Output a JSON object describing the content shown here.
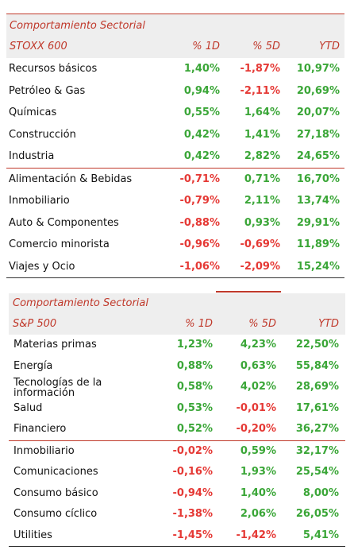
{
  "stoxx": {
    "title": "Comportamiento Sectorial",
    "index": "STOXX 600",
    "col_1d": "% 1D",
    "col_5d": "% 5D",
    "col_ytd": "YTD",
    "rows": [
      {
        "sector": "Recursos básicos",
        "d1": "1,40%",
        "d5": "-1,87%",
        "ytd": "10,97%",
        "d1_sign": "pos",
        "d5_sign": "neg",
        "ytd_sign": "pos"
      },
      {
        "sector": "Petróleo & Gas",
        "d1": "0,94%",
        "d5": "-2,11%",
        "ytd": "20,69%",
        "d1_sign": "pos",
        "d5_sign": "neg",
        "ytd_sign": "pos"
      },
      {
        "sector": "Químicas",
        "d1": "0,55%",
        "d5": "1,64%",
        "ytd": "20,07%",
        "d1_sign": "pos",
        "d5_sign": "pos",
        "ytd_sign": "pos"
      },
      {
        "sector": "Construcción",
        "d1": "0,42%",
        "d5": "1,41%",
        "ytd": "27,18%",
        "d1_sign": "pos",
        "d5_sign": "pos",
        "ytd_sign": "pos"
      },
      {
        "sector": "Industria",
        "d1": "0,42%",
        "d5": "2,82%",
        "ytd": "24,65%",
        "d1_sign": "pos",
        "d5_sign": "pos",
        "ytd_sign": "pos"
      },
      {
        "sector": "Alimentación & Bebidas",
        "d1": "-0,71%",
        "d5": "0,71%",
        "ytd": "16,70%",
        "d1_sign": "neg",
        "d5_sign": "pos",
        "ytd_sign": "pos"
      },
      {
        "sector": "Inmobiliario",
        "d1": "-0,79%",
        "d5": "2,11%",
        "ytd": "13,74%",
        "d1_sign": "neg",
        "d5_sign": "pos",
        "ytd_sign": "pos"
      },
      {
        "sector": "Auto & Componentes",
        "d1": "-0,88%",
        "d5": "0,93%",
        "ytd": "29,91%",
        "d1_sign": "neg",
        "d5_sign": "pos",
        "ytd_sign": "pos"
      },
      {
        "sector": "Comercio minorista",
        "d1": "-0,96%",
        "d5": "-0,69%",
        "ytd": "11,89%",
        "d1_sign": "neg",
        "d5_sign": "neg",
        "ytd_sign": "pos"
      },
      {
        "sector": "Viajes y Ocio",
        "d1": "-1,06%",
        "d5": "-2,09%",
        "ytd": "15,24%",
        "d1_sign": "neg",
        "d5_sign": "neg",
        "ytd_sign": "pos"
      }
    ]
  },
  "sp500": {
    "title": "Comportamiento Sectorial",
    "index": "S&P 500",
    "col_1d": "% 1D",
    "col_5d": "% 5D",
    "col_ytd": "YTD",
    "rows": [
      {
        "sector": "Materias primas",
        "d1": "1,23%",
        "d5": "4,23%",
        "ytd": "22,50%",
        "d1_sign": "pos",
        "d5_sign": "pos",
        "ytd_sign": "pos"
      },
      {
        "sector": "Energía",
        "d1": "0,88%",
        "d5": "0,63%",
        "ytd": "55,84%",
        "d1_sign": "pos",
        "d5_sign": "pos",
        "ytd_sign": "pos"
      },
      {
        "sector": "Tecnologías de la información",
        "d1": "0,58%",
        "d5": "4,02%",
        "ytd": "28,69%",
        "d1_sign": "pos",
        "d5_sign": "pos",
        "ytd_sign": "pos"
      },
      {
        "sector": "Salud",
        "d1": "0,53%",
        "d5": "-0,01%",
        "ytd": "17,61%",
        "d1_sign": "pos",
        "d5_sign": "neg",
        "ytd_sign": "pos"
      },
      {
        "sector": "Financiero",
        "d1": "0,52%",
        "d5": "-0,20%",
        "ytd": "36,27%",
        "d1_sign": "pos",
        "d5_sign": "neg",
        "ytd_sign": "pos"
      },
      {
        "sector": "Inmobiliario",
        "d1": "-0,02%",
        "d5": "0,59%",
        "ytd": "32,17%",
        "d1_sign": "neg",
        "d5_sign": "pos",
        "ytd_sign": "pos"
      },
      {
        "sector": "Comunicaciones",
        "d1": "-0,16%",
        "d5": "1,93%",
        "ytd": "25,54%",
        "d1_sign": "neg",
        "d5_sign": "pos",
        "ytd_sign": "pos"
      },
      {
        "sector": "Consumo básico",
        "d1": "-0,94%",
        "d5": "1,40%",
        "ytd": "8,00%",
        "d1_sign": "neg",
        "d5_sign": "pos",
        "ytd_sign": "pos"
      },
      {
        "sector": "Consumo cíclico",
        "d1": "-1,38%",
        "d5": "2,06%",
        "ytd": "26,05%",
        "d1_sign": "neg",
        "d5_sign": "pos",
        "ytd_sign": "pos"
      },
      {
        "sector": "Utilities",
        "d1": "-1,45%",
        "d5": "-1,42%",
        "ytd": "5,41%",
        "d1_sign": "neg",
        "d5_sign": "neg",
        "ytd_sign": "pos"
      }
    ]
  }
}
